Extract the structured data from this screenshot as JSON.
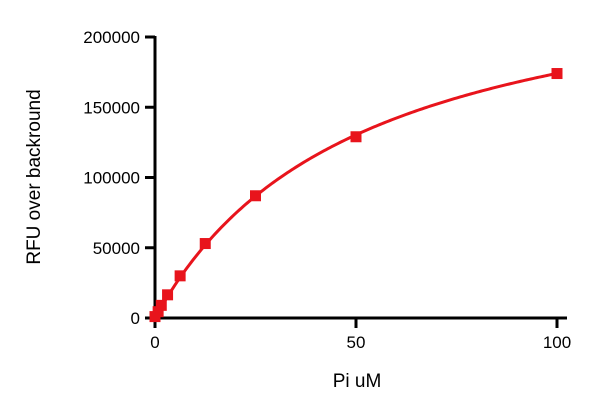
{
  "chart_data": {
    "type": "scatter",
    "title": "",
    "xlabel": "Pi uM",
    "ylabel": "RFU over backround",
    "xlim": [
      0,
      100
    ],
    "ylim": [
      0,
      200000
    ],
    "x_ticks": [
      0,
      50,
      100
    ],
    "y_ticks": [
      0,
      50000,
      100000,
      150000,
      200000
    ],
    "x_tick_labels": [
      "0",
      "50",
      "100"
    ],
    "y_tick_labels": [
      "0",
      "50000",
      "100000",
      "150000",
      "200000"
    ],
    "grid": false,
    "legend": "none",
    "series": [
      {
        "marker": "square",
        "color": "#e8141c",
        "points": [
          {
            "x": 0,
            "y": 1000
          },
          {
            "x": 0.78,
            "y": 4500
          },
          {
            "x": 1.56,
            "y": 9000
          },
          {
            "x": 3.125,
            "y": 16500
          },
          {
            "x": 6.25,
            "y": 30000
          },
          {
            "x": 12.5,
            "y": 53000
          },
          {
            "x": 25,
            "y": 87000
          },
          {
            "x": 50,
            "y": 129000
          },
          {
            "x": 100,
            "y": 174000
          }
        ],
        "fit": {
          "model": "one-site hyperbola",
          "bmax": 262000,
          "kd": 50.5
        }
      }
    ]
  }
}
